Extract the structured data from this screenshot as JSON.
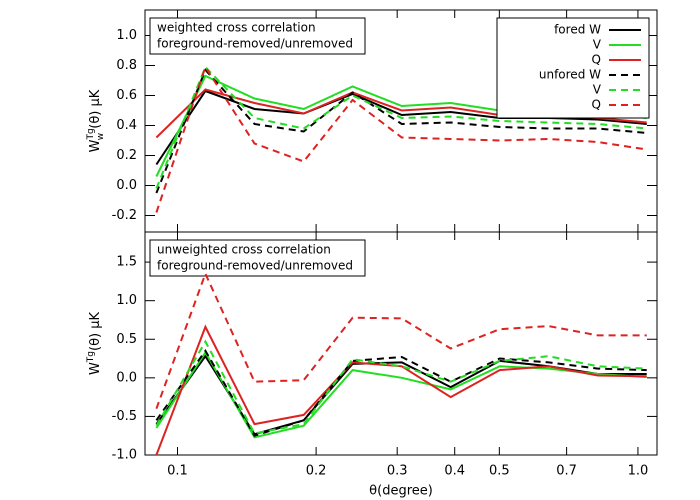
{
  "chart_data": [
    {
      "type": "line",
      "annotation": [
        "weighted cross correlation",
        "foreground-removed/unremoved"
      ],
      "ylabel": {
        "base": "W",
        "sup": "Tg",
        "sub": "w",
        "rest": " (θ)  μK"
      },
      "xscale": "log",
      "xlim": [
        0.085,
        1.1
      ],
      "xticks": [
        {
          "value": 0.1,
          "label": "0.1"
        },
        {
          "value": 0.2,
          "label": "0.2"
        },
        {
          "value": 0.3,
          "label": "0.3"
        },
        {
          "value": 0.4,
          "label": "0.4"
        },
        {
          "value": 0.5,
          "label": "0.5"
        },
        {
          "value": 0.7,
          "label": "0.7"
        },
        {
          "value": 1.0,
          "label": "1.0"
        }
      ],
      "ylim": [
        -0.31,
        1.17
      ],
      "yticks": [
        {
          "value": -0.2,
          "label": "-0.2"
        },
        {
          "value": 0.0,
          "label": "0.0"
        },
        {
          "value": 0.2,
          "label": "0.2"
        },
        {
          "value": 0.4,
          "label": "0.4"
        },
        {
          "value": 0.6,
          "label": "0.6"
        },
        {
          "value": 0.8,
          "label": "0.8"
        },
        {
          "value": 1.0,
          "label": "1.0"
        }
      ],
      "legend": "upper right",
      "x": [
        0.09,
        0.115,
        0.147,
        0.188,
        0.24,
        0.307,
        0.392,
        0.501,
        0.64,
        0.818,
        1.045
      ],
      "series": [
        {
          "name": "fored W",
          "color": "#000000",
          "linestyle": "solid",
          "values": [
            0.14,
            0.63,
            0.51,
            0.48,
            0.61,
            0.47,
            0.49,
            0.45,
            0.45,
            0.44,
            0.41
          ]
        },
        {
          "name": "V",
          "color": "#22dd22",
          "linestyle": "solid",
          "values": [
            0.06,
            0.73,
            0.58,
            0.51,
            0.66,
            0.53,
            0.55,
            0.5,
            0.49,
            0.48,
            0.45
          ]
        },
        {
          "name": "Q",
          "color": "#dd2222",
          "linestyle": "solid",
          "values": [
            0.32,
            0.64,
            0.55,
            0.48,
            0.62,
            0.5,
            0.52,
            0.47,
            0.47,
            0.45,
            0.42
          ]
        },
        {
          "name": "unfored W",
          "color": "#000000",
          "linestyle": "dashed",
          "values": [
            -0.05,
            0.77,
            0.41,
            0.36,
            0.62,
            0.41,
            0.42,
            0.39,
            0.38,
            0.38,
            0.35
          ]
        },
        {
          "name": "V",
          "color": "#22dd22",
          "linestyle": "dashed",
          "values": [
            -0.02,
            0.79,
            0.45,
            0.38,
            0.6,
            0.45,
            0.46,
            0.43,
            0.42,
            0.41,
            0.38
          ]
        },
        {
          "name": "Q",
          "color": "#dd2222",
          "linestyle": "dashed",
          "values": [
            -0.18,
            0.79,
            0.28,
            0.16,
            0.57,
            0.32,
            0.31,
            0.3,
            0.31,
            0.29,
            0.24
          ]
        }
      ]
    },
    {
      "type": "line",
      "annotation": [
        "unweighted cross correlation",
        "foreground-removed/unremoved"
      ],
      "ylabel": {
        "base": "W",
        "sup": "Tg",
        "rest": "(θ)  μK"
      },
      "xlabel": "θ(degree)",
      "xscale": "log",
      "xlim": [
        0.085,
        1.1
      ],
      "xticks": [
        {
          "value": 0.1,
          "label": "0.1"
        },
        {
          "value": 0.2,
          "label": "0.2"
        },
        {
          "value": 0.3,
          "label": "0.3"
        },
        {
          "value": 0.4,
          "label": "0.4"
        },
        {
          "value": 0.5,
          "label": "0.5"
        },
        {
          "value": 0.7,
          "label": "0.7"
        },
        {
          "value": 1.0,
          "label": "1.0"
        }
      ],
      "ylim": [
        -1.0,
        1.89
      ],
      "yticks": [
        {
          "value": -1.0,
          "label": "-1.0"
        },
        {
          "value": -0.5,
          "label": "-0.5"
        },
        {
          "value": 0.0,
          "label": "0.0"
        },
        {
          "value": 0.5,
          "label": "0.5"
        },
        {
          "value": 1.0,
          "label": "1.0"
        },
        {
          "value": 1.5,
          "label": "1.5"
        }
      ],
      "x": [
        0.09,
        0.115,
        0.147,
        0.188,
        0.24,
        0.307,
        0.392,
        0.501,
        0.64,
        0.818,
        1.045
      ],
      "series": [
        {
          "color": "#000000",
          "linestyle": "solid",
          "values": [
            -0.6,
            0.28,
            -0.73,
            -0.55,
            0.18,
            0.2,
            -0.12,
            0.22,
            0.15,
            0.05,
            0.05
          ]
        },
        {
          "color": "#22dd22",
          "linestyle": "solid",
          "values": [
            -0.65,
            0.33,
            -0.77,
            -0.62,
            0.1,
            0.0,
            -0.15,
            0.15,
            0.12,
            0.05,
            0.01
          ]
        },
        {
          "color": "#dd2222",
          "linestyle": "solid",
          "values": [
            -1.0,
            0.66,
            -0.6,
            -0.48,
            0.2,
            0.15,
            -0.25,
            0.1,
            0.15,
            0.03,
            0.02
          ]
        },
        {
          "color": "#000000",
          "linestyle": "dashed",
          "values": [
            -0.55,
            0.35,
            -0.75,
            -0.55,
            0.22,
            0.27,
            -0.05,
            0.25,
            0.2,
            0.12,
            0.1
          ]
        },
        {
          "color": "#22dd22",
          "linestyle": "dashed",
          "values": [
            -0.62,
            0.47,
            -0.72,
            -0.6,
            0.24,
            0.15,
            -0.05,
            0.22,
            0.28,
            0.15,
            0.12
          ]
        },
        {
          "color": "#dd2222",
          "linestyle": "dashed",
          "values": [
            -0.4,
            1.35,
            -0.05,
            -0.03,
            0.78,
            0.77,
            0.38,
            0.63,
            0.67,
            0.55,
            0.55
          ]
        }
      ]
    }
  ]
}
